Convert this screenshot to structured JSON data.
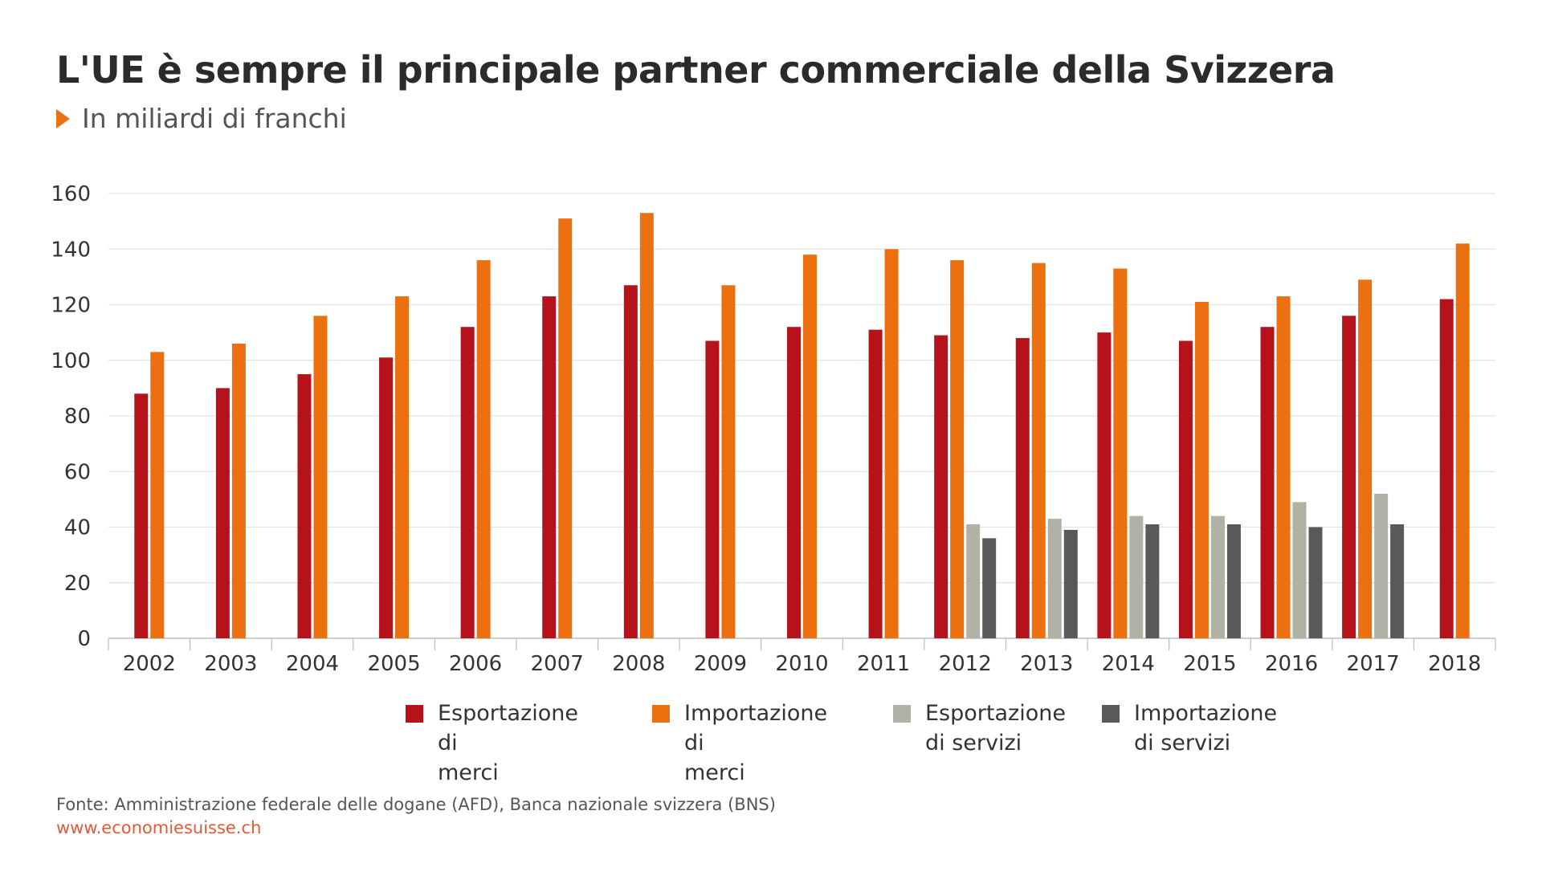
{
  "header": {
    "title": "L'UE è sempre il principale partner commerciale della Svizzera",
    "subtitle": "In miliardi di franchi"
  },
  "footer": {
    "source": "Fonte: Amministrazione federale delle dogane (AFD), Banca nazionale svizzera (BNS)",
    "url": "www.economiesuisse.ch"
  },
  "chart_data": {
    "type": "bar",
    "title": "L'UE è sempre il principale partner commerciale della Svizzera",
    "subtitle": "In miliardi di franchi",
    "xlabel": "",
    "ylabel": "",
    "ylim": [
      0,
      160
    ],
    "yticks": [
      0,
      20,
      40,
      60,
      80,
      100,
      120,
      140,
      160
    ],
    "grid": true,
    "legend_position": "bottom",
    "categories": [
      "2002",
      "2003",
      "2004",
      "2005",
      "2006",
      "2007",
      "2008",
      "2009",
      "2010",
      "2011",
      "2012",
      "2013",
      "2014",
      "2015",
      "2016",
      "2017",
      "2018"
    ],
    "series": [
      {
        "name": "Esportazione di merci",
        "color": "#b5121b",
        "values": [
          88,
          90,
          95,
          101,
          112,
          123,
          127,
          107,
          112,
          111,
          109,
          108,
          110,
          107,
          112,
          116,
          122
        ]
      },
      {
        "name": "Importazione di merci",
        "color": "#ec6f10",
        "values": [
          103,
          106,
          116,
          123,
          136,
          151,
          153,
          127,
          138,
          140,
          136,
          135,
          133,
          121,
          123,
          129,
          142
        ]
      },
      {
        "name": "Esportazione di servizi",
        "color": "#b2b1a5",
        "values": [
          null,
          null,
          null,
          null,
          null,
          null,
          null,
          null,
          null,
          null,
          41,
          43,
          44,
          44,
          49,
          52,
          null
        ]
      },
      {
        "name": "Importazione di servizi",
        "color": "#595959",
        "values": [
          null,
          null,
          null,
          null,
          null,
          null,
          null,
          null,
          null,
          null,
          36,
          39,
          41,
          41,
          40,
          41,
          null
        ]
      }
    ]
  },
  "legend": {
    "items": [
      {
        "label": "Esportazione di\nmerci",
        "color": "#b5121b"
      },
      {
        "label": "Importazione di\nmerci",
        "color": "#ec6f10"
      },
      {
        "label": "Esportazione\ndi servizi",
        "color": "#b2b1a5"
      },
      {
        "label": "Importazione\ndi servizi",
        "color": "#595959"
      }
    ]
  }
}
